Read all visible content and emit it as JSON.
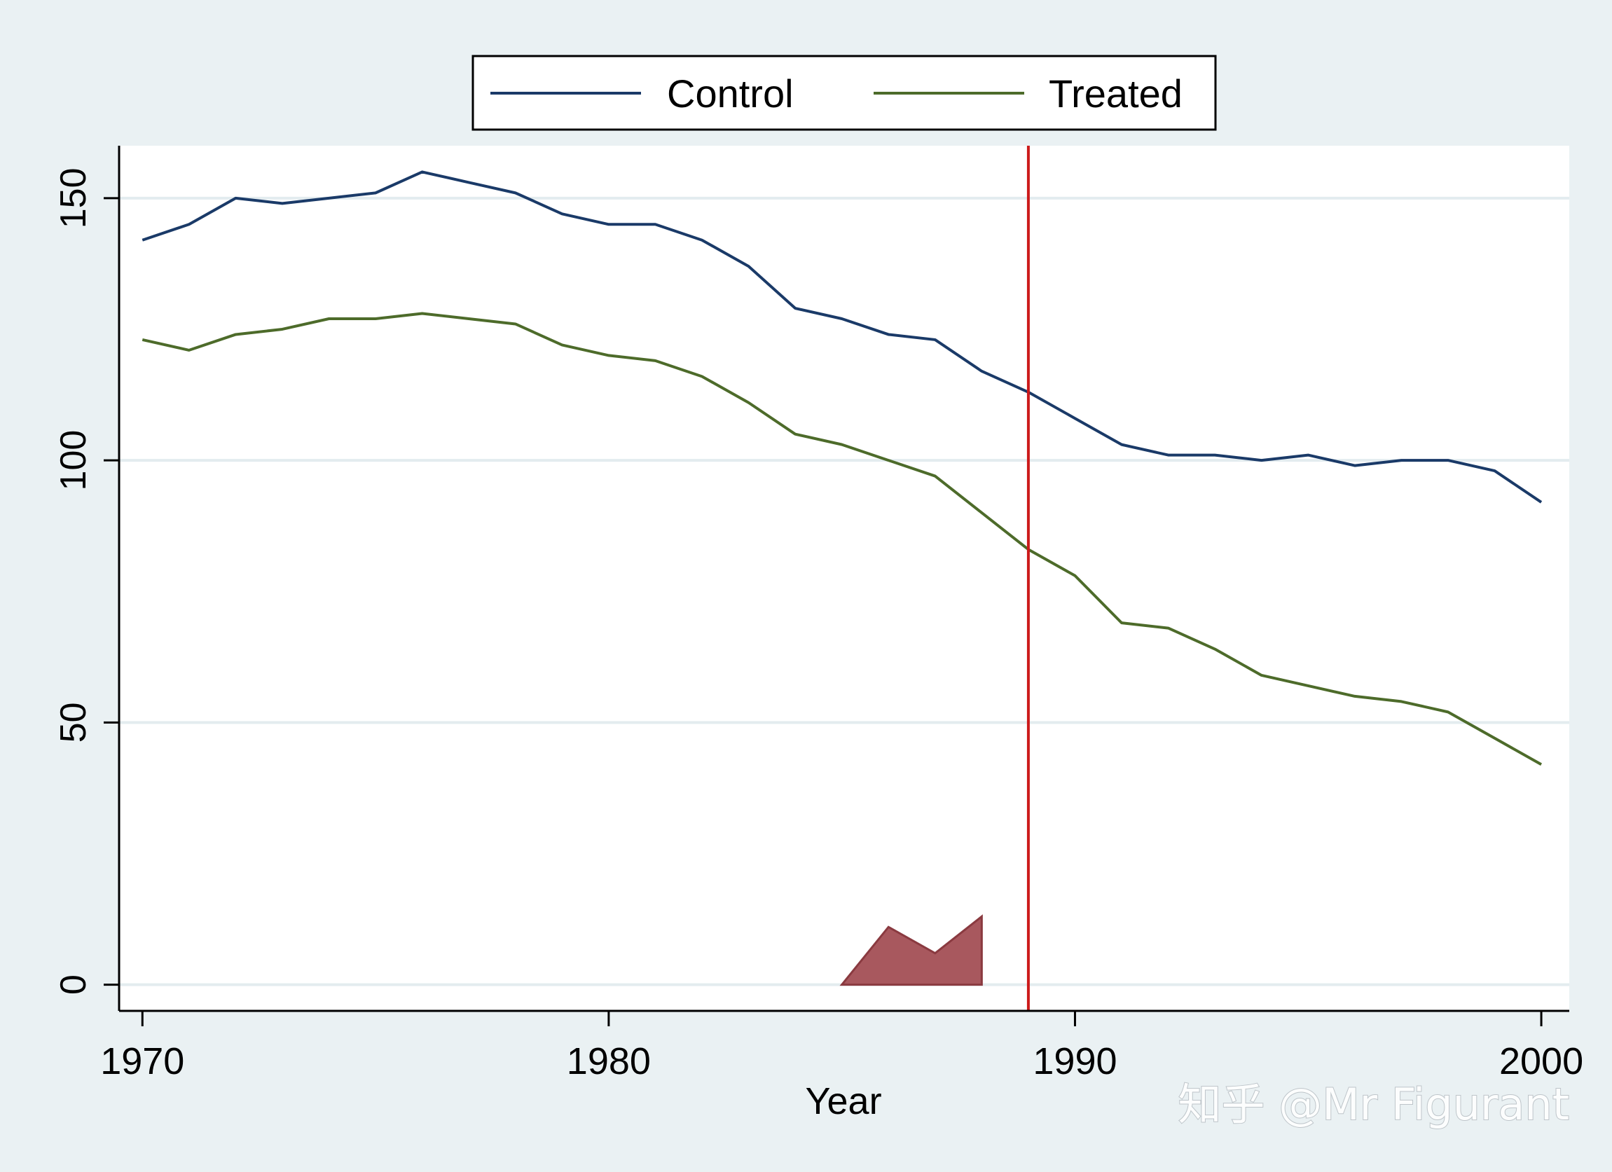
{
  "chart_data": {
    "type": "line",
    "title": "",
    "xlabel": "Year",
    "ylabel": "",
    "xlim": [
      1969.5,
      2000.6
    ],
    "ylim": [
      -5,
      160
    ],
    "x_ticks": [
      1970,
      1980,
      1990,
      2000
    ],
    "y_ticks": [
      0,
      50,
      100,
      150
    ],
    "grid": "horizontal",
    "legend_position": "top",
    "x": [
      1970,
      1971,
      1972,
      1973,
      1974,
      1975,
      1976,
      1977,
      1978,
      1979,
      1980,
      1981,
      1982,
      1983,
      1984,
      1985,
      1986,
      1987,
      1988,
      1989,
      1990,
      1991,
      1992,
      1993,
      1994,
      1995,
      1996,
      1997,
      1998,
      1999,
      2000
    ],
    "series": [
      {
        "name": "Control",
        "color": "#1a3a68",
        "values": [
          142,
          145,
          150,
          149,
          150,
          151,
          155,
          153,
          151,
          147,
          145,
          145,
          142,
          137,
          129,
          127,
          124,
          123,
          117,
          113,
          108,
          103,
          101,
          101,
          100,
          101,
          99,
          100,
          100,
          98,
          92
        ]
      },
      {
        "name": "Treated",
        "color": "#4d6b2a",
        "values": [
          123,
          121,
          124,
          125,
          127,
          127,
          128,
          127,
          126,
          122,
          120,
          119,
          116,
          111,
          105,
          103,
          100,
          97,
          90,
          83,
          78,
          69,
          68,
          64,
          59,
          57,
          55,
          54,
          52,
          47,
          42
        ]
      }
    ],
    "area": {
      "color": "#a8585e",
      "x": [
        1985,
        1986,
        1987,
        1988
      ],
      "values": [
        0,
        11,
        6,
        13
      ]
    },
    "vline": {
      "x": 1989,
      "color": "#cc1a1a"
    }
  },
  "watermark": "知乎 @Mr Figurant"
}
